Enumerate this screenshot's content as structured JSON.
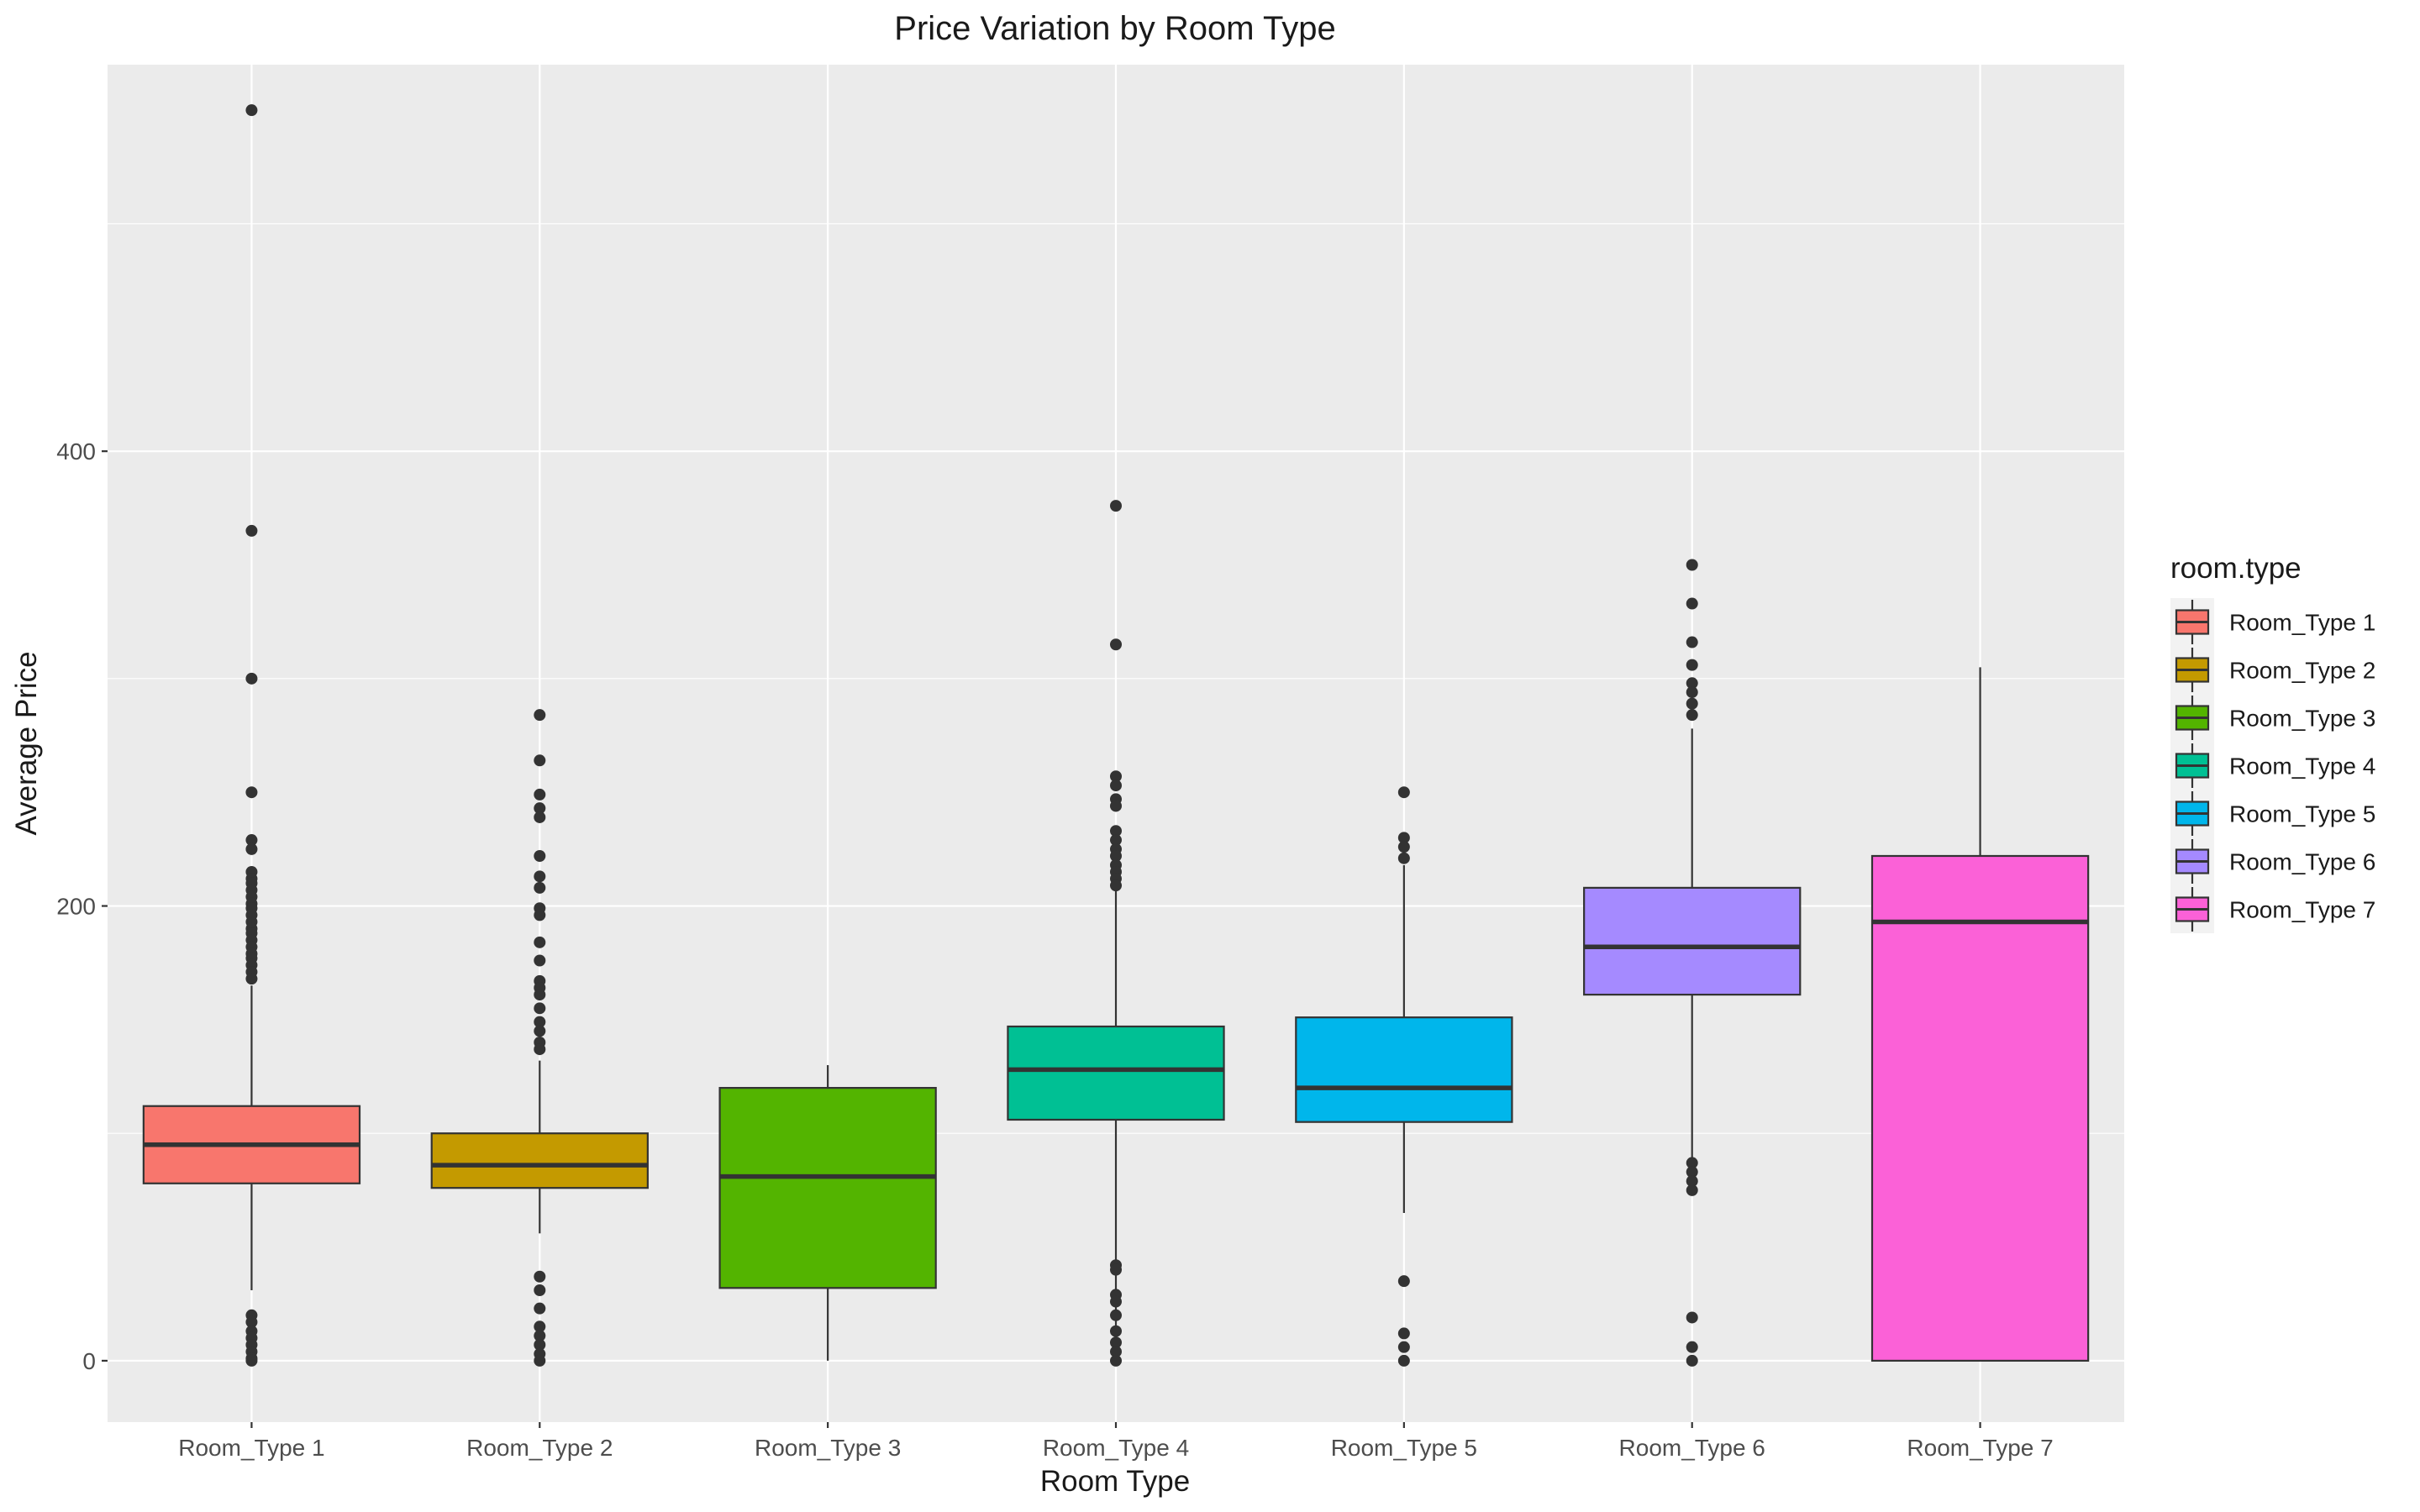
{
  "chart_data": {
    "type": "boxplot",
    "title": "Price Variation by Room Type",
    "xlabel": "Room Type",
    "ylabel": "Average Price",
    "ylim": [
      -27,
      570
    ],
    "yticks": [
      0,
      200,
      400
    ],
    "grid": true,
    "legend": {
      "title": "room.type",
      "placement": "right"
    },
    "categories": [
      "Room_Type 1",
      "Room_Type 2",
      "Room_Type 3",
      "Room_Type 4",
      "Room_Type 5",
      "Room_Type 6",
      "Room_Type 7"
    ],
    "colors": [
      "#F8766D",
      "#C49A00",
      "#53B400",
      "#00C094",
      "#00B6EB",
      "#A58AFF",
      "#FB61D7"
    ],
    "boxes": [
      {
        "name": "Room_Type 1",
        "whisker_low": 31,
        "q1": 78,
        "median": 95,
        "q3": 112,
        "whisker_high": 165,
        "outliers": [
          550,
          365,
          300,
          250,
          229,
          225,
          215,
          212,
          210,
          207,
          204,
          201,
          199,
          196,
          193,
          190,
          188,
          185,
          182,
          179,
          177,
          174,
          171,
          168,
          20,
          17,
          13,
          10,
          7,
          4,
          1,
          0
        ]
      },
      {
        "name": "Room_Type 2",
        "whisker_low": 56,
        "q1": 76,
        "median": 86,
        "q3": 100,
        "whisker_high": 132,
        "outliers": [
          284,
          264,
          249,
          243,
          239,
          222,
          213,
          208,
          199,
          196,
          184,
          176,
          167,
          164,
          161,
          155,
          149,
          145,
          140,
          137,
          37,
          31,
          23,
          15,
          11,
          7,
          3,
          0
        ]
      },
      {
        "name": "Room_Type 3",
        "whisker_low": 0,
        "q1": 32,
        "median": 81,
        "q3": 120,
        "whisker_high": 130,
        "outliers": []
      },
      {
        "name": "Room_Type 4",
        "whisker_low": 0,
        "q1": 106,
        "median": 128,
        "q3": 147,
        "whisker_high": 207,
        "outliers": [
          376,
          315,
          257,
          253,
          247,
          244,
          233,
          229,
          225,
          222,
          218,
          215,
          212,
          209,
          42,
          40,
          29,
          26,
          20,
          13,
          8,
          4,
          0
        ]
      },
      {
        "name": "Room_Type 5",
        "whisker_low": 65,
        "q1": 105,
        "median": 120,
        "q3": 151,
        "whisker_high": 218,
        "outliers": [
          250,
          230,
          226,
          221,
          35,
          12,
          6,
          0
        ]
      },
      {
        "name": "Room_Type 6",
        "whisker_low": 89,
        "q1": 161,
        "median": 182,
        "q3": 208,
        "whisker_high": 278,
        "outliers": [
          350,
          333,
          316,
          306,
          298,
          294,
          289,
          284,
          87,
          83,
          79,
          75,
          19,
          6,
          0
        ]
      },
      {
        "name": "Room_Type 7",
        "whisker_low": 0,
        "q1": 0,
        "median": 193,
        "q3": 222,
        "whisker_high": 305,
        "outliers": []
      }
    ]
  }
}
